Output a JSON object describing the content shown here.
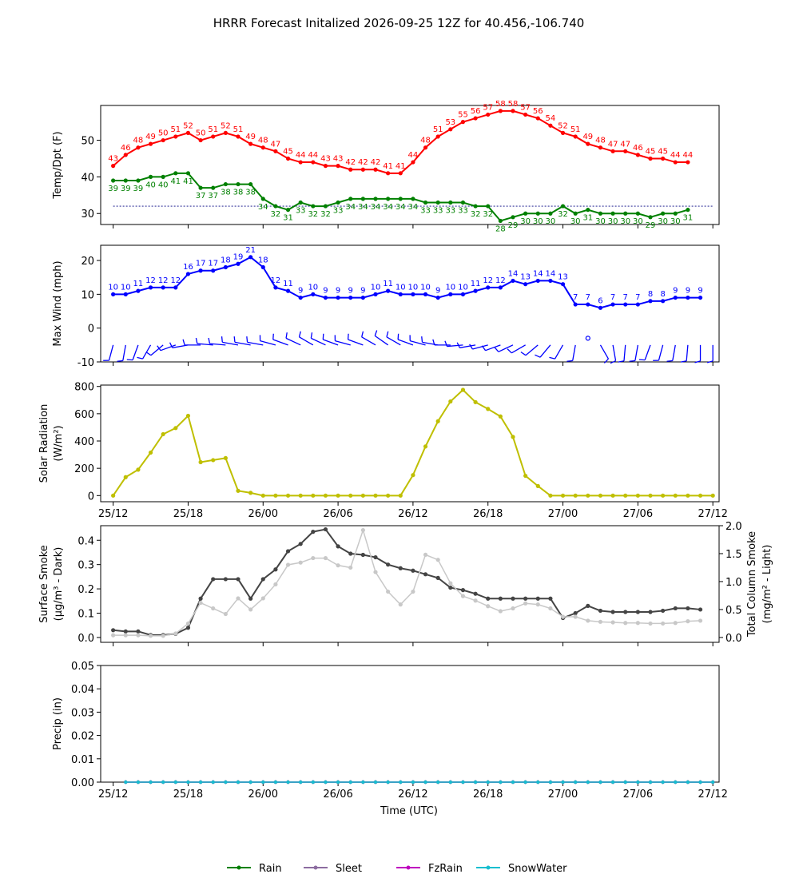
{
  "title": "HRRR Forecast Initalized 2026-09-25 12Z for 40.456,-106.740",
  "xaxis": {
    "label": "Time (UTC)",
    "tick_labels": [
      "25/12",
      "25/18",
      "26/00",
      "26/06",
      "26/12",
      "26/18",
      "27/00",
      "27/06",
      "27/12"
    ],
    "tick_hours": [
      0,
      6,
      12,
      18,
      24,
      30,
      36,
      42,
      48
    ],
    "range_hours": [
      -1,
      48.5
    ]
  },
  "colors": {
    "temp": "#ff0000",
    "dewpoint": "#008000",
    "wind": "#0000ff",
    "solar": "#bfbf00",
    "smoke_surface": "#444444",
    "smoke_column": "#c8c8c8",
    "rain": "#008000",
    "sleet": "#8c6ca0",
    "fzrain": "#bf00bf",
    "snowwater": "#17becf"
  },
  "chart_data": [
    {
      "type": "line",
      "id": "temp-dewpoint",
      "ylabel": "Temp/Dpt (F)",
      "ylim": [
        27,
        59.5
      ],
      "yticks": [
        30,
        40,
        50
      ],
      "reference_line": 32,
      "series": [
        {
          "key": "temp",
          "values": [
            43,
            46,
            48,
            49,
            50,
            51,
            52,
            50,
            51,
            52,
            51,
            49,
            48,
            47,
            45,
            44,
            44,
            43,
            43,
            42,
            42,
            42,
            41,
            41,
            44,
            48,
            51,
            53,
            55,
            56,
            57,
            58,
            58,
            57,
            56,
            54,
            52,
            51,
            49,
            48,
            47,
            47,
            46,
            45,
            45,
            44,
            44
          ],
          "labels": true
        },
        {
          "key": "dewpoint",
          "values": [
            39,
            39,
            39,
            40,
            40,
            41,
            41,
            37,
            37,
            38,
            38,
            38,
            34,
            32,
            31,
            33,
            32,
            32,
            33,
            34,
            34,
            34,
            34,
            34,
            34,
            33,
            33,
            33,
            33,
            32,
            32,
            28,
            29,
            30,
            30,
            30,
            32,
            30,
            31,
            30,
            30,
            30,
            30,
            29,
            30,
            30,
            31
          ],
          "labels": true
        }
      ]
    },
    {
      "type": "line",
      "id": "wind",
      "ylabel": "Max Wind (mph)",
      "ylim": [
        -10,
        24.5
      ],
      "yticks": [
        -10,
        0,
        10,
        20
      ],
      "series": [
        {
          "key": "wind",
          "values": [
            10,
            10,
            11,
            12,
            12,
            12,
            16,
            17,
            17,
            18,
            19,
            21,
            18,
            12,
            11,
            9,
            10,
            9,
            9,
            9,
            9,
            10,
            11,
            10,
            10,
            10,
            9,
            10,
            10,
            11,
            12,
            12,
            14,
            13,
            14,
            14,
            13,
            7,
            7,
            6,
            7,
            7,
            7,
            8,
            8,
            9,
            9,
            9
          ],
          "labels": true
        }
      ],
      "barb_directions_deg": [
        195,
        190,
        200,
        210,
        230,
        250,
        260,
        270,
        275,
        275,
        280,
        280,
        280,
        285,
        290,
        295,
        300,
        295,
        290,
        285,
        290,
        300,
        305,
        300,
        290,
        285,
        280,
        270,
        265,
        260,
        255,
        250,
        245,
        240,
        230,
        220,
        210,
        190,
        0,
        150,
        170,
        185,
        190,
        200,
        195,
        190,
        185,
        180,
        180
      ]
    },
    {
      "type": "line",
      "id": "solar",
      "ylabel": "Solar Radiation",
      "ylabel_unit": "(W/m²)",
      "ylim": [
        -45,
        810
      ],
      "yticks": [
        0,
        200,
        400,
        600,
        800
      ],
      "series": [
        {
          "key": "solar",
          "values": [
            0,
            135,
            190,
            315,
            450,
            495,
            585,
            245,
            260,
            275,
            35,
            20,
            0,
            0,
            0,
            0,
            0,
            0,
            0,
            0,
            0,
            0,
            0,
            0,
            150,
            360,
            545,
            690,
            775,
            685,
            635,
            580,
            430,
            145,
            70,
            0,
            0,
            0,
            0,
            0,
            0,
            0,
            0,
            0,
            0,
            0,
            0,
            0,
            0
          ]
        }
      ]
    },
    {
      "type": "line",
      "id": "smoke",
      "ylabel": "Surface Smoke",
      "ylabel_unit": "(μg/m³ - Dark)",
      "y2label": "Total Column Smoke",
      "y2label_unit": "(mg/m² - Light)",
      "ylim": [
        -0.02,
        0.46
      ],
      "yticks": [
        0.0,
        0.1,
        0.2,
        0.3,
        0.4
      ],
      "y2lim": [
        -0.087,
        2.0
      ],
      "y2ticks": [
        0.0,
        0.5,
        1.0,
        1.5,
        2.0
      ],
      "series": [
        {
          "key": "smoke_surface",
          "axis": "left",
          "values": [
            0.03,
            0.025,
            0.025,
            0.01,
            0.01,
            0.015,
            0.04,
            0.16,
            0.24,
            0.24,
            0.24,
            0.16,
            0.24,
            0.28,
            0.355,
            0.385,
            0.435,
            0.445,
            0.375,
            0.345,
            0.34,
            0.33,
            0.3,
            0.285,
            0.275,
            0.26,
            0.245,
            0.205,
            0.195,
            0.18,
            0.16,
            0.16,
            0.16,
            0.16,
            0.16,
            0.16,
            0.08,
            0.1,
            0.13,
            0.11,
            0.105,
            0.105,
            0.105,
            0.105,
            0.11,
            0.12,
            0.12,
            0.115
          ]
        },
        {
          "key": "smoke_column",
          "axis": "right",
          "values": [
            0.04,
            0.04,
            0.04,
            0.03,
            0.03,
            0.07,
            0.25,
            0.62,
            0.52,
            0.42,
            0.7,
            0.5,
            0.7,
            0.95,
            1.3,
            1.34,
            1.42,
            1.42,
            1.29,
            1.25,
            1.92,
            1.17,
            0.82,
            0.59,
            0.82,
            1.48,
            1.39,
            0.97,
            0.74,
            0.66,
            0.56,
            0.47,
            0.52,
            0.61,
            0.59,
            0.52,
            0.37,
            0.37,
            0.3,
            0.28,
            0.27,
            0.26,
            0.26,
            0.25,
            0.25,
            0.26,
            0.29,
            0.3
          ]
        }
      ]
    },
    {
      "type": "line",
      "id": "precip",
      "ylabel": "Precip (in)",
      "ylim": [
        0,
        0.05
      ],
      "yticks": [
        "0.00",
        "0.01",
        "0.02",
        "0.03",
        "0.04",
        "0.05"
      ],
      "series": [
        {
          "key": "rain",
          "name": "Rain",
          "start_hour": 1,
          "value": 0
        },
        {
          "key": "sleet",
          "name": "Sleet",
          "start_hour": 1,
          "value": 0
        },
        {
          "key": "fzrain",
          "name": "FzRain",
          "start_hour": 1,
          "value": 0
        },
        {
          "key": "snowwater",
          "name": "SnowWater",
          "start_hour": 1,
          "value": 0
        }
      ]
    }
  ],
  "legend": {
    "placement": "bottom-center",
    "entries": [
      {
        "key": "rain",
        "label": "Rain"
      },
      {
        "key": "sleet",
        "label": "Sleet"
      },
      {
        "key": "fzrain",
        "label": "FzRain"
      },
      {
        "key": "snowwater",
        "label": "SnowWater"
      }
    ]
  }
}
